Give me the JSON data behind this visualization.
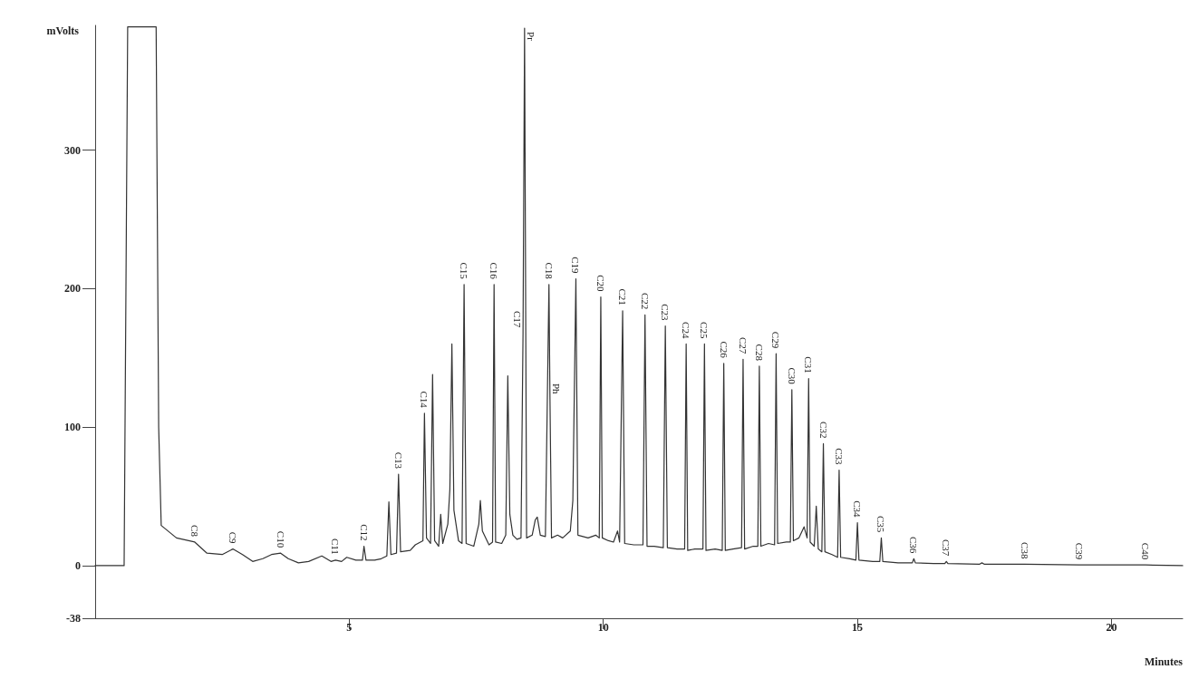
{
  "chart_data": {
    "type": "line",
    "xlabel": "Minutes",
    "ylabel": "mVolts",
    "xlim": [
      0,
      21.4
    ],
    "ylim": [
      -38,
      390
    ],
    "xticks": [
      5,
      10,
      15,
      20
    ],
    "yticks": [
      -38,
      0,
      100,
      200,
      300
    ],
    "grid": false,
    "marker": "none",
    "line_style": "solid",
    "x": [
      0,
      0.57,
      0.64,
      1.2,
      1.25,
      1.3,
      1.6,
      1.96,
      2.2,
      2.5,
      2.71,
      2.9,
      3.1,
      3.3,
      3.47,
      3.65,
      3.8,
      4.0,
      4.2,
      4.46,
      4.64,
      4.73,
      4.85,
      4.95,
      5.13,
      5.26,
      5.29,
      5.33,
      5.5,
      5.63,
      5.74,
      5.78,
      5.82,
      5.93,
      5.97,
      6.01,
      6.2,
      6.3,
      6.45,
      6.48,
      6.52,
      6.6,
      6.64,
      6.68,
      6.76,
      6.8,
      6.84,
      6.94,
      6.98,
      7.02,
      7.06,
      7.15,
      7.22,
      7.26,
      7.3,
      7.45,
      7.55,
      7.58,
      7.62,
      7.75,
      7.82,
      7.85,
      7.88,
      8.0,
      8.08,
      8.12,
      8.16,
      8.22,
      8.3,
      8.38,
      8.42,
      8.45,
      8.49,
      8.6,
      8.66,
      8.7,
      8.76,
      8.86,
      8.93,
      8.95,
      8.98,
      9.1,
      9.2,
      9.35,
      9.4,
      9.46,
      9.5,
      9.7,
      9.85,
      9.92,
      9.95,
      9.98,
      10.1,
      10.2,
      10.28,
      10.32,
      10.38,
      10.42,
      10.6,
      10.78,
      10.82,
      10.86,
      11.0,
      11.18,
      11.22,
      11.26,
      11.45,
      11.6,
      11.63,
      11.66,
      11.8,
      11.96,
      11.99,
      12.02,
      12.2,
      12.34,
      12.37,
      12.4,
      12.55,
      12.72,
      12.75,
      12.78,
      12.95,
      13.04,
      13.07,
      13.1,
      13.25,
      13.37,
      13.4,
      13.43,
      13.6,
      13.68,
      13.71,
      13.74,
      13.85,
      13.95,
      14.01,
      14.04,
      14.07,
      14.15,
      14.19,
      14.23,
      14.3,
      14.33,
      14.36,
      14.5,
      14.61,
      14.64,
      14.67,
      14.85,
      14.97,
      15.0,
      15.03,
      15.3,
      15.44,
      15.47,
      15.5,
      15.8,
      16.08,
      16.11,
      16.14,
      16.5,
      16.72,
      16.75,
      16.78,
      17.4,
      17.45,
      17.5,
      18.29,
      19.36,
      20.67,
      21.4
    ],
    "series": [
      {
        "color": "#333333",
        "values": [
          0,
          0,
          389,
          389,
          100,
          29,
          20,
          17,
          9,
          8,
          12,
          8,
          3,
          5,
          8,
          9,
          5,
          2,
          3,
          7,
          3,
          4,
          3,
          6,
          4,
          4,
          14,
          4,
          4,
          5,
          7,
          46,
          8,
          9,
          66,
          10,
          11,
          15,
          18,
          110,
          20,
          16,
          138,
          18,
          14,
          37,
          16,
          30,
          55,
          160,
          40,
          18,
          16,
          203,
          16,
          14,
          30,
          47,
          25,
          15,
          17,
          203,
          17,
          16,
          22,
          137,
          37,
          22,
          19,
          20,
          168,
          388,
          20,
          22,
          33,
          35,
          22,
          21,
          203,
          120,
          20,
          22,
          20,
          25,
          47,
          207,
          22,
          20,
          22,
          20,
          194,
          20,
          18,
          17,
          25,
          17,
          184,
          16,
          15,
          15,
          181,
          14,
          14,
          13,
          173,
          13,
          12,
          12,
          160,
          11,
          12,
          12,
          160,
          11,
          12,
          11,
          146,
          11,
          12,
          13,
          149,
          12,
          14,
          14,
          144,
          14,
          16,
          15,
          153,
          16,
          17,
          17,
          127,
          18,
          20,
          28,
          20,
          135,
          17,
          14,
          43,
          12,
          10,
          88,
          10,
          8,
          6,
          69,
          6,
          5,
          4,
          31,
          4,
          3,
          3,
          20,
          3,
          2,
          2,
          5,
          2,
          1.5,
          1.5,
          3,
          1.5,
          1,
          2,
          1,
          1,
          0.5,
          0.5,
          0
        ]
      }
    ],
    "annotations": [
      {
        "text": "C8",
        "x": 1.96,
        "y": 17
      },
      {
        "text": "C9",
        "x": 2.71,
        "y": 12
      },
      {
        "text": "C10",
        "x": 3.65,
        "y": 9
      },
      {
        "text": "C11",
        "x": 4.73,
        "y": 4
      },
      {
        "text": "C12",
        "x": 5.29,
        "y": 14
      },
      {
        "text": "C13",
        "x": 5.97,
        "y": 66
      },
      {
        "text": "C14",
        "x": 6.48,
        "y": 110
      },
      {
        "text": "C15",
        "x": 7.26,
        "y": 203
      },
      {
        "text": "C16",
        "x": 7.85,
        "y": 203
      },
      {
        "text": "C17",
        "x": 8.42,
        "y": 168
      },
      {
        "text": "Pr",
        "x": 8.45,
        "y": 388
      },
      {
        "text": "C18",
        "x": 8.93,
        "y": 203
      },
      {
        "text": "Ph",
        "x": 8.95,
        "y": 120
      },
      {
        "text": "C19",
        "x": 9.46,
        "y": 207
      },
      {
        "text": "C20",
        "x": 9.95,
        "y": 194
      },
      {
        "text": "C21",
        "x": 10.38,
        "y": 184
      },
      {
        "text": "C22",
        "x": 10.82,
        "y": 181
      },
      {
        "text": "C23",
        "x": 11.22,
        "y": 173
      },
      {
        "text": "C24",
        "x": 11.63,
        "y": 160
      },
      {
        "text": "C25",
        "x": 11.99,
        "y": 160
      },
      {
        "text": "C26",
        "x": 12.37,
        "y": 146
      },
      {
        "text": "C27",
        "x": 12.75,
        "y": 149
      },
      {
        "text": "C28",
        "x": 13.07,
        "y": 144
      },
      {
        "text": "C29",
        "x": 13.4,
        "y": 153
      },
      {
        "text": "C30",
        "x": 13.71,
        "y": 127
      },
      {
        "text": "C31",
        "x": 14.04,
        "y": 135
      },
      {
        "text": "C32",
        "x": 14.33,
        "y": 88
      },
      {
        "text": "C33",
        "x": 14.64,
        "y": 69
      },
      {
        "text": "C34",
        "x": 15.0,
        "y": 31
      },
      {
        "text": "C35",
        "x": 15.47,
        "y": 20
      },
      {
        "text": "C36",
        "x": 16.11,
        "y": 5
      },
      {
        "text": "C37",
        "x": 16.75,
        "y": 3
      },
      {
        "text": "C38",
        "x": 18.29,
        "y": 1
      },
      {
        "text": "C39",
        "x": 19.36,
        "y": 0.5
      },
      {
        "text": "C40",
        "x": 20.67,
        "y": 0.5
      }
    ]
  }
}
